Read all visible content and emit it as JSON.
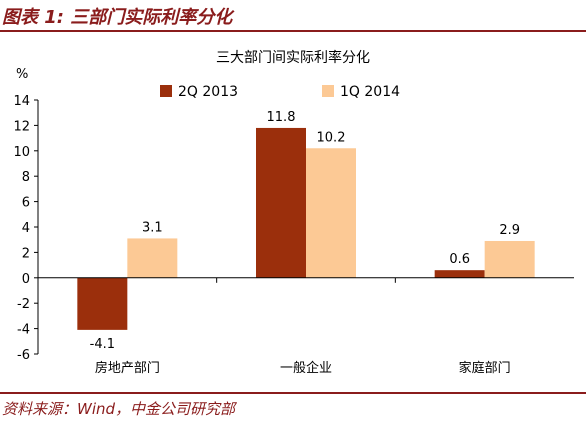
{
  "figure": {
    "title": "图表 1:  三部门实际利率分化",
    "source": "资料来源：Wind，中金公司研究部"
  },
  "colors": {
    "accent": "#8a1c1c",
    "series_2q2013": "#9b2f0c",
    "series_1q2014": "#fcc995"
  },
  "chart_data": {
    "type": "bar",
    "title": "三大部门间实际利率分化",
    "ylabel": "%",
    "xlabel": "",
    "ylim": [
      -6,
      14
    ],
    "yticks": [
      -6,
      -4,
      -2,
      0,
      2,
      4,
      6,
      8,
      10,
      12,
      14
    ],
    "categories": [
      "房地产部门",
      "一般企业",
      "家庭部门"
    ],
    "series": [
      {
        "name": "2Q 2013",
        "values": [
          -4.1,
          11.8,
          0.6
        ],
        "labels": [
          "-4.1",
          "11.8",
          "0.6"
        ],
        "color": "#9b2f0c"
      },
      {
        "name": "1Q 2014",
        "values": [
          3.1,
          10.2,
          2.9
        ],
        "labels": [
          "3.1",
          "10.2",
          "2.9"
        ],
        "color": "#fcc995"
      }
    ],
    "legend_position": "top-center",
    "grid": false
  }
}
